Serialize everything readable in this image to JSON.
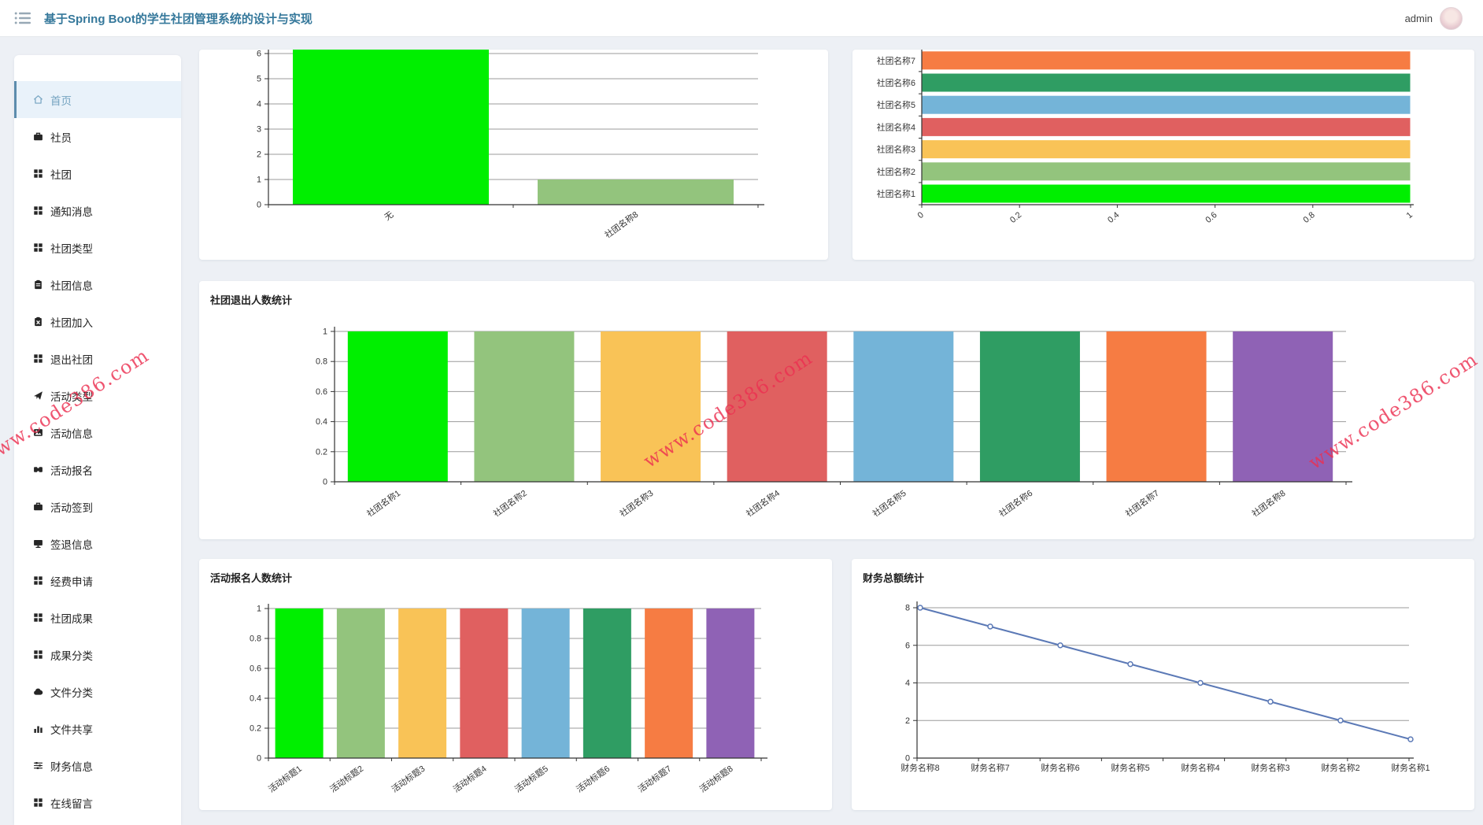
{
  "header": {
    "title": "基于Spring Boot的学生社团管理系统的设计与实现",
    "user": "admin"
  },
  "sidebar": {
    "items": [
      {
        "label": "首页",
        "icon": "home-icon",
        "active": true
      },
      {
        "label": "社员",
        "icon": "briefcase-icon",
        "active": false
      },
      {
        "label": "社团",
        "icon": "grid-icon",
        "active": false
      },
      {
        "label": "通知消息",
        "icon": "grid-icon",
        "active": false
      },
      {
        "label": "社团类型",
        "icon": "grid-icon",
        "active": false
      },
      {
        "label": "社团信息",
        "icon": "clipboard-icon",
        "active": false
      },
      {
        "label": "社团加入",
        "icon": "clipboard-x-icon",
        "active": false
      },
      {
        "label": "退出社团",
        "icon": "grid-icon",
        "active": false
      },
      {
        "label": "活动类型",
        "icon": "paper-plane-icon",
        "active": false
      },
      {
        "label": "活动信息",
        "icon": "image-icon",
        "active": false
      },
      {
        "label": "活动报名",
        "icon": "ticket-icon",
        "active": false
      },
      {
        "label": "活动签到",
        "icon": "briefcase-icon",
        "active": false
      },
      {
        "label": "签退信息",
        "icon": "desktop-icon",
        "active": false
      },
      {
        "label": "经费申请",
        "icon": "grid-icon",
        "active": false
      },
      {
        "label": "社团成果",
        "icon": "grid-icon",
        "active": false
      },
      {
        "label": "成果分类",
        "icon": "grid-icon",
        "active": false
      },
      {
        "label": "文件分类",
        "icon": "cloud-icon",
        "active": false
      },
      {
        "label": "文件共享",
        "icon": "bar-chart-icon",
        "active": false
      },
      {
        "label": "财务信息",
        "icon": "sliders-icon",
        "active": false
      },
      {
        "label": "在线留言",
        "icon": "grid-icon",
        "active": false
      }
    ]
  },
  "watermark": {
    "text": "www.code386.com",
    "color": "#eb2f50"
  },
  "chart_data": [
    {
      "id": "club-member-count",
      "type": "bar",
      "title": "",
      "note": "card scrolled: title and bar top clipped above viewport",
      "categories": [
        "无",
        "社团名称8"
      ],
      "values": [
        6.6,
        1
      ],
      "clipped_top": true,
      "bar_colors": [
        "#00ef00",
        "#93c47d"
      ],
      "ylim": [
        0,
        6
      ],
      "yticks": [
        0,
        1,
        2,
        3,
        4,
        5,
        6
      ]
    },
    {
      "id": "club-names-horizontal",
      "type": "bar-horizontal",
      "title": "",
      "note": "card scrolled: title and 8th row clipped above viewport",
      "categories": [
        "社团名称1",
        "社团名称2",
        "社团名称3",
        "社团名称4",
        "社团名称5",
        "社团名称6",
        "社团名称7"
      ],
      "values": [
        1,
        1,
        1,
        1,
        1,
        1,
        1
      ],
      "clipped_top": true,
      "bar_colors": [
        "#00ef00",
        "#93c47d",
        "#f9c357",
        "#e06060",
        "#74b4d8",
        "#2f9d63",
        "#f67c43"
      ],
      "xlim": [
        0,
        1
      ],
      "xticks": [
        "0",
        "0.2",
        "0.4",
        "0.6",
        "0.8",
        "1"
      ]
    },
    {
      "id": "club-exit-count",
      "type": "bar",
      "title": "社团退出人数统计",
      "categories": [
        "社团名称1",
        "社团名称2",
        "社团名称3",
        "社团名称4",
        "社团名称5",
        "社团名称6",
        "社团名称7",
        "社团名称8"
      ],
      "values": [
        1,
        1,
        1,
        1,
        1,
        1,
        1,
        1
      ],
      "bar_colors": [
        "#00ef00",
        "#93c47d",
        "#f9c357",
        "#e06060",
        "#74b4d8",
        "#2f9d63",
        "#f67c43",
        "#8f62b5"
      ],
      "ylim": [
        0,
        1
      ],
      "yticks": [
        0,
        0.2,
        0.4,
        0.6,
        0.8,
        1
      ]
    },
    {
      "id": "activity-signup-count",
      "type": "bar",
      "title": "活动报名人数统计",
      "categories": [
        "活动标题1",
        "活动标题2",
        "活动标题3",
        "活动标题4",
        "活动标题5",
        "活动标题6",
        "活动标题7",
        "活动标题8"
      ],
      "values": [
        1,
        1,
        1,
        1,
        1,
        1,
        1,
        1
      ],
      "bar_colors": [
        "#00ef00",
        "#93c47d",
        "#f9c357",
        "#e06060",
        "#74b4d8",
        "#2f9d63",
        "#f67c43",
        "#8f62b5"
      ],
      "ylim": [
        0,
        1
      ],
      "yticks": [
        0,
        0.2,
        0.4,
        0.6,
        0.8,
        1
      ]
    },
    {
      "id": "finance-total",
      "type": "line",
      "title": "财务总额统计",
      "categories": [
        "财务名称8",
        "财务名称7",
        "财务名称6",
        "财务名称5",
        "财务名称4",
        "财务名称3",
        "财务名称2",
        "财务名称1"
      ],
      "values": [
        8,
        7,
        6,
        5,
        4,
        3,
        2,
        1
      ],
      "line_color": "#5b79b6",
      "ylim": [
        0,
        8
      ],
      "yticks": [
        0,
        2,
        4,
        6,
        8
      ],
      "grid": true,
      "marker": "circle"
    }
  ]
}
